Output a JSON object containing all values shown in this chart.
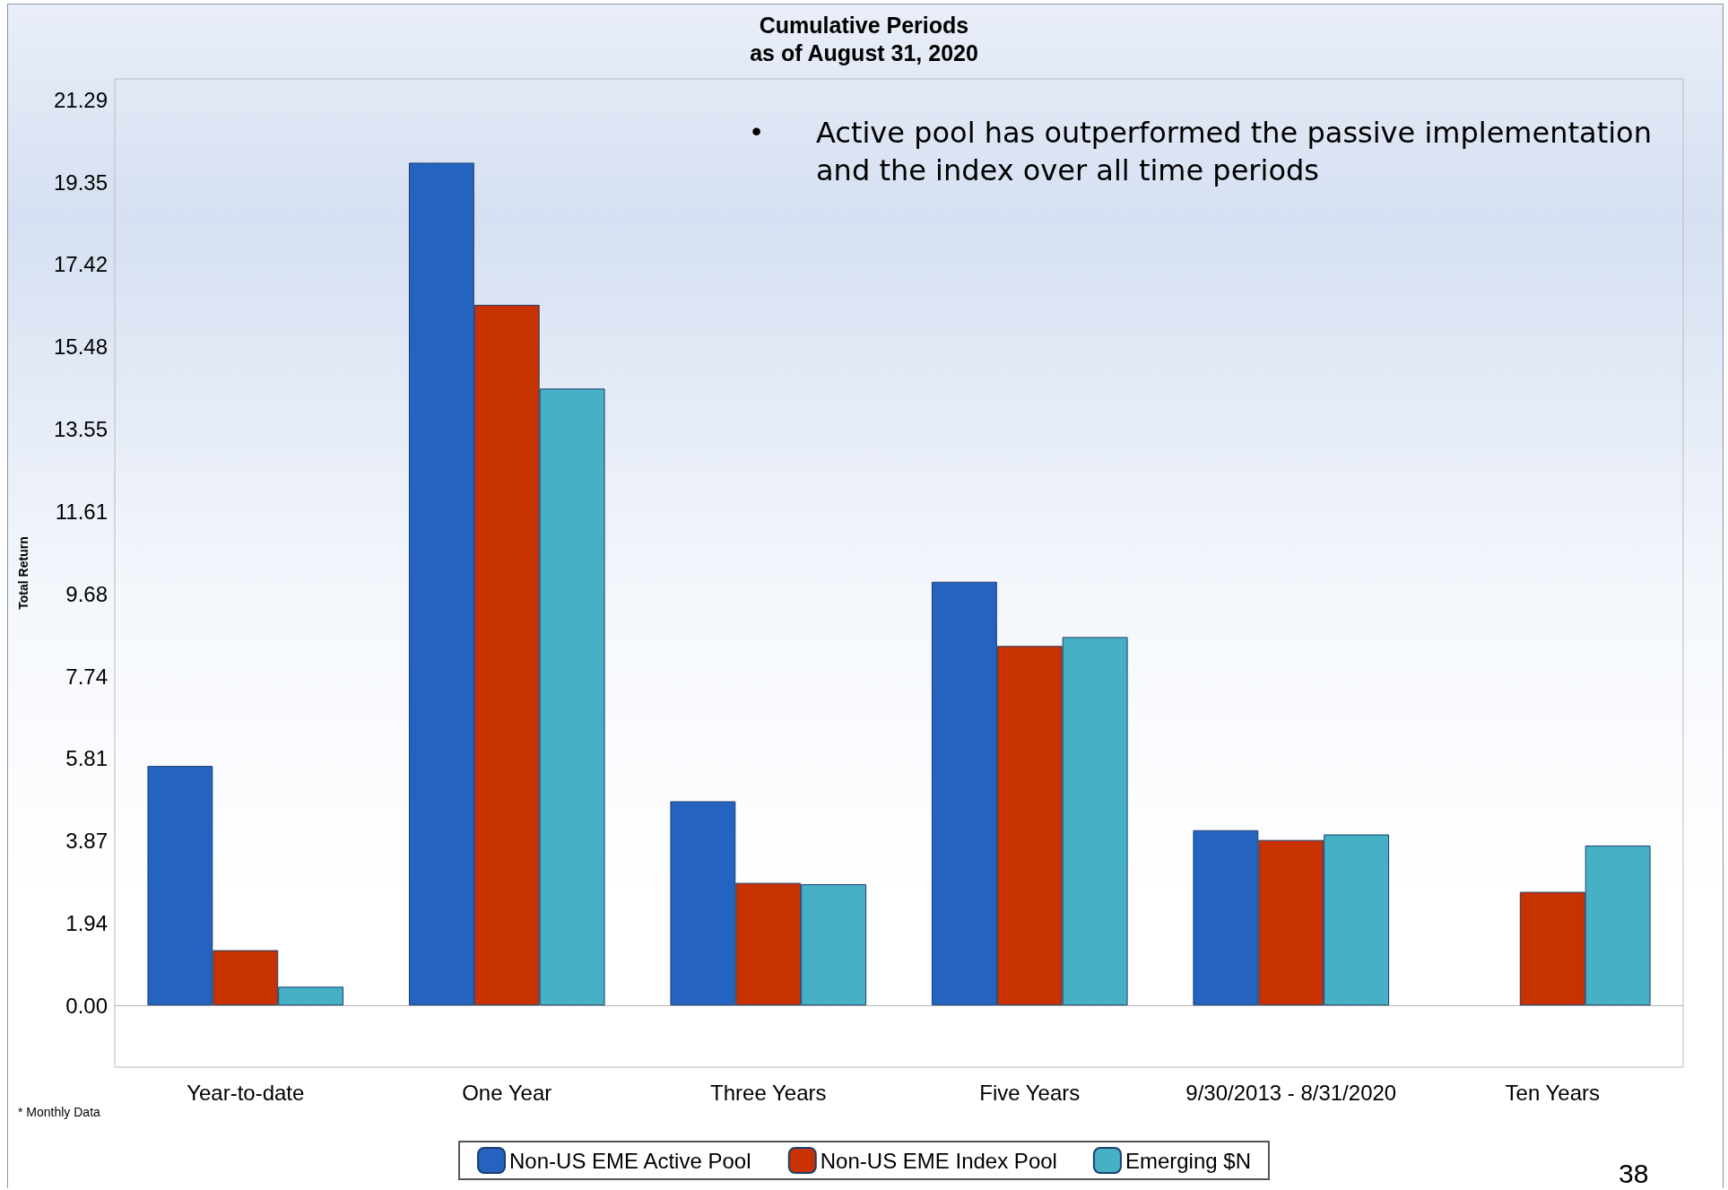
{
  "chart_data": {
    "type": "bar",
    "title": "Cumulative Periods",
    "subtitle": "as of August 31, 2020",
    "ylabel": "Total Return",
    "categories": [
      "Year-to-date",
      "One Year",
      "Three Years",
      "Five Years",
      "9/30/2013 - 8/31/2020",
      "Ten Years"
    ],
    "series": [
      {
        "name": "Non-US EME Active Pool",
        "color": "#2563c0",
        "values": [
          5.63,
          19.81,
          4.8,
          9.96,
          4.12,
          null
        ]
      },
      {
        "name": "Non-US EME Index Pool",
        "color": "#c83200",
        "values": [
          1.3,
          16.47,
          2.88,
          8.45,
          3.89,
          2.67
        ]
      },
      {
        "name": "Emerging $N",
        "color": "#46b1c4",
        "values": [
          0.44,
          14.5,
          2.85,
          8.66,
          4.02,
          3.76
        ]
      }
    ],
    "ylim": [
      -1.45,
      21.78
    ],
    "yticks": [
      {
        "value": 0,
        "label": "0.00"
      },
      1.94,
      3.87,
      5.81,
      7.74,
      9.68,
      11.61,
      13.55,
      15.48,
      17.42,
      19.35,
      21.29
    ],
    "ref_lines": [
      {
        "axis": "y",
        "value": 0,
        "color": "#aaaaaa",
        "line_style": "dotted"
      }
    ],
    "grid": false,
    "legend": "bottom",
    "annotations": [
      "•",
      "Active pool has outperformed the passive implementation and the index over all time periods",
      "* Monthly Data",
      "38"
    ]
  }
}
